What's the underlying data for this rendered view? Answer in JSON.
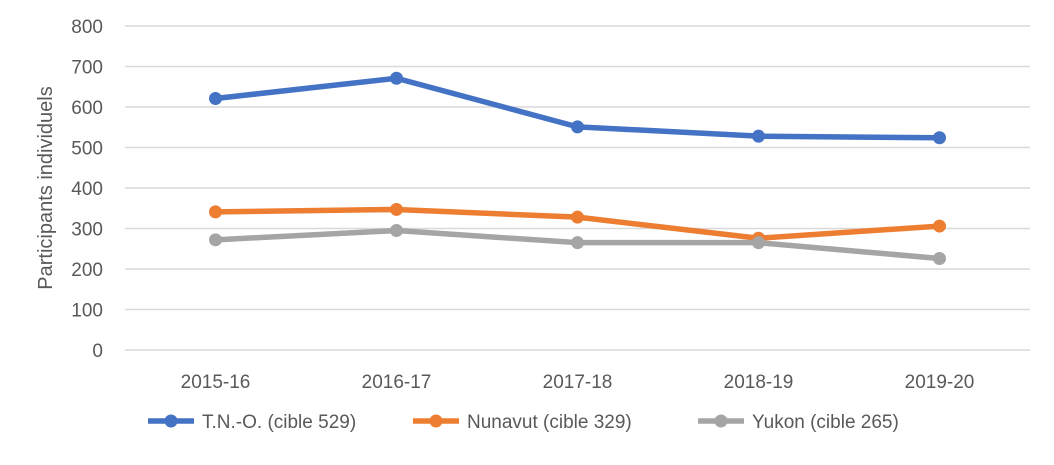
{
  "chart_data": {
    "type": "line",
    "title": "",
    "xlabel": "",
    "ylabel": "Participants individuels",
    "ylim": [
      0,
      800
    ],
    "yticks": [
      0,
      100,
      200,
      300,
      400,
      500,
      600,
      700,
      800
    ],
    "grid": true,
    "legend_position": "bottom",
    "categories": [
      "2015-16",
      "2016-17",
      "2017-18",
      "2018-19",
      "2019-20"
    ],
    "series": [
      {
        "name": "T.N.-O. (cible 529)",
        "color": "#4472C4",
        "values": [
          621,
          671,
          551,
          528,
          524
        ]
      },
      {
        "name": "Nunavut (cible 329)",
        "color": "#ED7D31",
        "values": [
          341,
          347,
          328,
          276,
          306
        ]
      },
      {
        "name": "Yukon (cible 265)",
        "color": "#A5A5A5",
        "values": [
          272,
          295,
          265,
          265,
          226
        ]
      }
    ]
  }
}
